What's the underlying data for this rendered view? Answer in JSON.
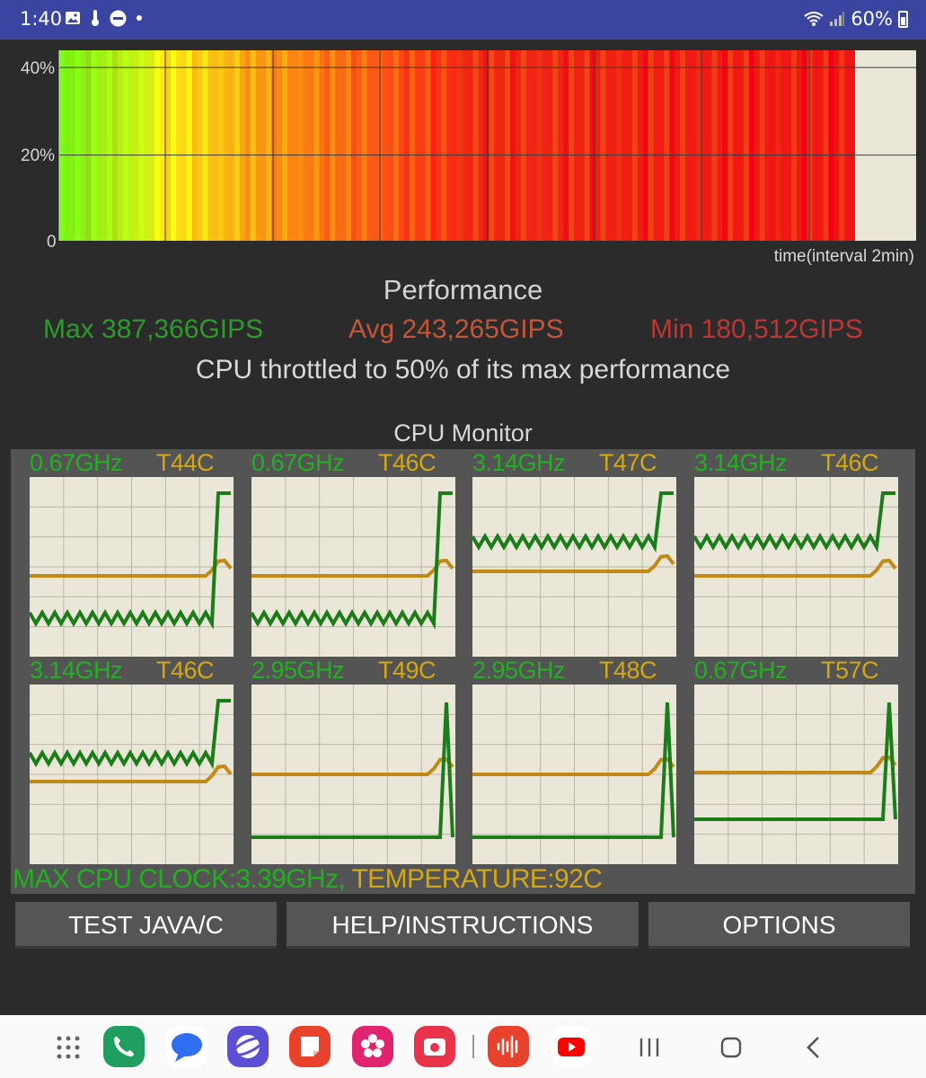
{
  "status_bar": {
    "time": "1:40",
    "battery": "60%"
  },
  "performance_chart": {
    "y_ticks": [
      "40%",
      "20%",
      "0"
    ],
    "x_label": "time(interval 2min)"
  },
  "performance": {
    "title": "Performance",
    "max": "Max 387,366GIPS",
    "avg": "Avg 243,265GIPS",
    "min": "Min 180,512GIPS",
    "throttle": "CPU throttled to 50% of its max performance"
  },
  "cpu_monitor": {
    "title": "CPU Monitor",
    "cores": [
      {
        "freq": "0.67GHz",
        "temp": "T44C"
      },
      {
        "freq": "0.67GHz",
        "temp": "T46C"
      },
      {
        "freq": "3.14GHz",
        "temp": "T47C"
      },
      {
        "freq": "3.14GHz",
        "temp": "T46C"
      },
      {
        "freq": "3.14GHz",
        "temp": "T46C"
      },
      {
        "freq": "2.95GHz",
        "temp": "T49C"
      },
      {
        "freq": "2.95GHz",
        "temp": "T48C"
      },
      {
        "freq": "0.67GHz",
        "temp": "T57C"
      }
    ],
    "summary_clock": "MAX CPU CLOCK:3.39GHz,",
    "summary_temp": "TEMPERATURE:92C"
  },
  "buttons": {
    "test": "TEST JAVA/C",
    "help": "HELP/INSTRUCTIONS",
    "options": "OPTIONS"
  },
  "colors": {
    "status_bar": "#3a45a1",
    "freq_green": "#22b022",
    "temp_gold": "#d4a814",
    "max_green": "#2e9a2e",
    "avg_orange": "#c2553a",
    "min_red": "#c03434"
  },
  "dock_apps": [
    "phone-icon",
    "messages-icon",
    "internet-icon",
    "notes-icon",
    "gallery-icon",
    "camera-icon",
    "voice-recorder-icon",
    "youtube-icon"
  ]
}
